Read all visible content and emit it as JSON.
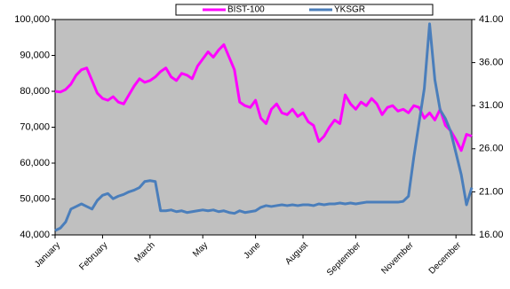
{
  "chart_data": {
    "type": "line",
    "categories": [
      "January",
      null,
      null,
      null,
      null,
      null,
      null,
      null,
      null,
      "February",
      null,
      null,
      null,
      null,
      null,
      null,
      null,
      null,
      "March",
      null,
      null,
      null,
      null,
      null,
      null,
      null,
      null,
      null,
      "May",
      null,
      null,
      null,
      null,
      null,
      null,
      null,
      null,
      null,
      "June",
      null,
      null,
      null,
      null,
      null,
      null,
      null,
      null,
      "August",
      null,
      null,
      null,
      null,
      null,
      null,
      null,
      null,
      null,
      "September",
      null,
      null,
      null,
      null,
      null,
      null,
      null,
      null,
      null,
      "November",
      null,
      null,
      null,
      null,
      null,
      null,
      null,
      null,
      "December",
      null,
      null,
      null
    ],
    "series": [
      {
        "name": "BIST-100",
        "color": "#ff00ff",
        "values": [
          80000,
          79800,
          80500,
          82000,
          84500,
          86000,
          86500,
          83000,
          79500,
          78000,
          77500,
          78500,
          77000,
          76500,
          79000,
          81500,
          83500,
          82500,
          83000,
          84000,
          85500,
          86500,
          84000,
          83000,
          85000,
          84500,
          83500,
          87000,
          89000,
          91000,
          89500,
          91500,
          93000,
          89500,
          86000,
          77000,
          76000,
          75500,
          77500,
          72500,
          71000,
          75000,
          76500,
          74000,
          73500,
          75000,
          73000,
          74000,
          71500,
          70500,
          66000,
          67500,
          70000,
          72000,
          71000,
          79000,
          76500,
          75000,
          77000,
          76000,
          78000,
          76500,
          73500,
          75500,
          76000,
          74500,
          75000,
          74000,
          76000,
          75500,
          72500,
          74000,
          72000,
          75000,
          70500,
          69000,
          66500,
          63500,
          68000,
          67500
        ]
      },
      {
        "name": "YKSGR",
        "color": "#4a7ebb",
        "axis": "y2",
        "values": [
          16.5,
          16.8,
          17.5,
          19.0,
          19.3,
          19.6,
          19.3,
          19.0,
          20.0,
          20.6,
          20.8,
          20.2,
          20.5,
          20.7,
          21.0,
          21.2,
          21.5,
          22.2,
          22.3,
          22.2,
          18.8,
          18.8,
          18.9,
          18.7,
          18.8,
          18.6,
          18.7,
          18.8,
          18.9,
          18.8,
          18.9,
          18.7,
          18.8,
          18.6,
          18.5,
          18.8,
          18.6,
          18.7,
          18.8,
          19.2,
          19.4,
          19.3,
          19.4,
          19.5,
          19.4,
          19.5,
          19.4,
          19.5,
          19.5,
          19.4,
          19.6,
          19.5,
          19.6,
          19.6,
          19.7,
          19.6,
          19.7,
          19.6,
          19.7,
          19.8,
          19.8,
          19.8,
          19.8,
          19.8,
          19.8,
          19.8,
          19.9,
          20.5,
          25.0,
          29.0,
          33.0,
          40.5,
          34.0,
          30.5,
          29.5,
          28.0,
          25.5,
          23.0,
          19.5,
          21.5
        ]
      }
    ],
    "ylim": [
      40000,
      100000
    ],
    "yticks": [
      {
        "value": 40000,
        "label": "40,000"
      },
      {
        "value": 50000,
        "label": "50,000"
      },
      {
        "value": 60000,
        "label": "60,000"
      },
      {
        "value": 70000,
        "label": "70,000"
      },
      {
        "value": 80000,
        "label": "80,000"
      },
      {
        "value": 90000,
        "label": "90,000"
      },
      {
        "value": 100000,
        "label": "100,000"
      }
    ],
    "y2lim": [
      16,
      41
    ],
    "y2ticks": [
      {
        "value": 16,
        "label": "16.00"
      },
      {
        "value": 21,
        "label": "21.00"
      },
      {
        "value": 26,
        "label": "26.00"
      },
      {
        "value": 31,
        "label": "31.00"
      },
      {
        "value": 36,
        "label": "36.00"
      },
      {
        "value": 41,
        "label": "41.00"
      }
    ],
    "legend": "top",
    "plot_background": "#c0c0c0"
  }
}
